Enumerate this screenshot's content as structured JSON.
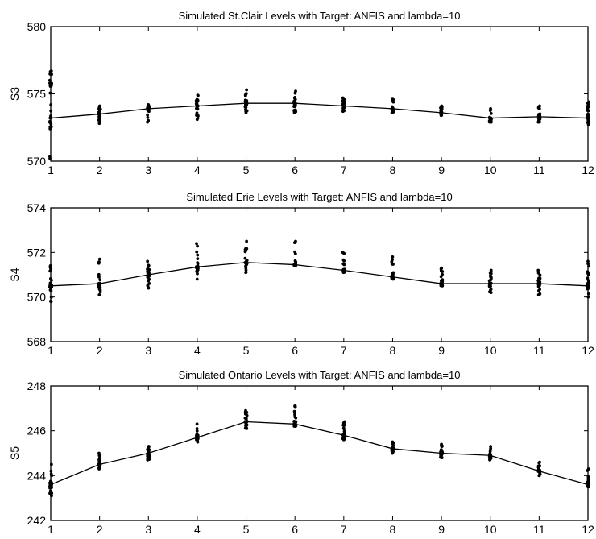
{
  "chart_data": [
    {
      "type": "line",
      "title": "Simulated St.Clair Levels with Target: ANFIS and lambda=10",
      "ylabel": "S3",
      "xlabel": "",
      "x_ticks": [
        1,
        2,
        3,
        4,
        5,
        6,
        7,
        8,
        9,
        10,
        11,
        12
      ],
      "y_ticks": [
        570,
        575,
        580
      ],
      "xlim": [
        1,
        12
      ],
      "ylim": [
        570,
        580
      ],
      "grid": false,
      "target": [
        573.2,
        573.5,
        573.9,
        574.1,
        574.3,
        574.3,
        574.1,
        573.9,
        573.6,
        573.2,
        573.3,
        573.2
      ],
      "sim_min": [
        570.2,
        572.8,
        572.9,
        573.1,
        573.6,
        573.6,
        573.7,
        573.6,
        573.4,
        572.9,
        572.9,
        572.7
      ],
      "sim_max": [
        576.7,
        574.1,
        574.2,
        574.9,
        575.3,
        575.2,
        574.7,
        574.6,
        574.1,
        573.9,
        574.1,
        574.4
      ]
    },
    {
      "type": "line",
      "title": "Simulated Erie Levels with Target: ANFIS and lambda=10",
      "ylabel": "S4",
      "xlabel": "",
      "x_ticks": [
        1,
        2,
        3,
        4,
        5,
        6,
        7,
        8,
        9,
        10,
        11,
        12
      ],
      "y_ticks": [
        568,
        570,
        572,
        574
      ],
      "xlim": [
        1,
        12
      ],
      "ylim": [
        568,
        574
      ],
      "grid": false,
      "target": [
        570.5,
        570.6,
        571.0,
        571.35,
        571.55,
        571.45,
        571.2,
        570.9,
        570.6,
        570.6,
        570.6,
        570.5
      ],
      "sim_min": [
        569.8,
        570.1,
        570.4,
        570.8,
        571.1,
        571.4,
        571.1,
        570.8,
        570.5,
        570.2,
        570.1,
        570.0
      ],
      "sim_max": [
        571.4,
        571.7,
        571.6,
        572.4,
        572.5,
        572.5,
        572.0,
        571.8,
        571.3,
        571.2,
        571.2,
        571.6
      ]
    },
    {
      "type": "line",
      "title": "Simulated Ontario Levels with Target: ANFIS and lambda=10",
      "ylabel": "S5",
      "xlabel": "",
      "x_ticks": [
        1,
        2,
        3,
        4,
        5,
        6,
        7,
        8,
        9,
        10,
        11,
        12
      ],
      "y_ticks": [
        242,
        244,
        246,
        248
      ],
      "xlim": [
        1,
        12
      ],
      "ylim": [
        242,
        248
      ],
      "grid": false,
      "target": [
        243.6,
        244.5,
        245.0,
        245.7,
        246.4,
        246.3,
        245.8,
        245.2,
        245.0,
        244.9,
        244.2,
        243.6
      ],
      "sim_min": [
        243.1,
        244.3,
        244.7,
        245.5,
        246.1,
        246.2,
        245.6,
        245.0,
        244.8,
        244.7,
        244.0,
        243.5
      ],
      "sim_max": [
        244.5,
        245.0,
        245.3,
        246.3,
        246.9,
        247.1,
        246.4,
        245.5,
        245.4,
        245.3,
        244.6,
        244.3
      ]
    }
  ]
}
